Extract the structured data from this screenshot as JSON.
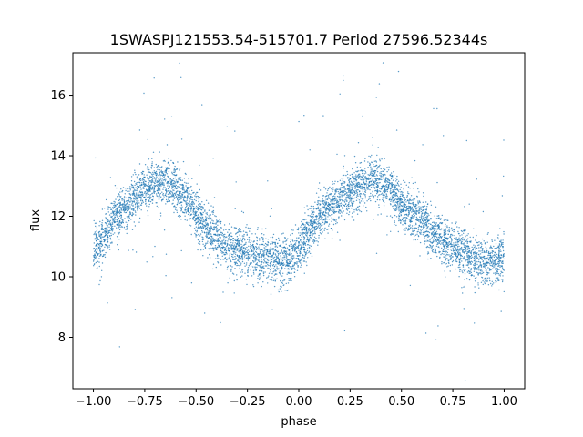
{
  "chart_data": {
    "type": "scatter",
    "title": "1SWASPJ121553.54-515701.7 Period 27596.52344s",
    "xlabel": "phase",
    "ylabel": "flux",
    "xlim": [
      -1.1,
      1.1
    ],
    "ylim": [
      6.3,
      17.4
    ],
    "x_ticks": [
      -1.0,
      -0.75,
      -0.5,
      -0.25,
      0.0,
      0.25,
      0.5,
      0.75,
      1.0
    ],
    "x_tick_labels": [
      "−1.00",
      "−0.75",
      "−0.50",
      "−0.25",
      "0.00",
      "0.25",
      "0.50",
      "0.75",
      "1.00"
    ],
    "y_ticks": [
      8,
      10,
      12,
      14,
      16
    ],
    "y_tick_labels": [
      "8",
      "10",
      "12",
      "14",
      "16"
    ],
    "grid": false,
    "legend": "none",
    "marker_color": "#1f77b4",
    "series": [
      {
        "x": [
          -1.0,
          -0.9,
          -0.8,
          -0.75,
          -0.7,
          -0.65,
          -0.6,
          -0.55,
          -0.5,
          -0.45,
          -0.4,
          -0.35,
          -0.3,
          -0.25,
          -0.2,
          -0.15,
          -0.1,
          -0.05,
          0.0,
          0.05,
          0.1,
          0.15,
          0.2,
          0.25,
          0.3,
          0.35,
          0.4,
          0.45,
          0.5,
          0.55,
          0.6,
          0.65,
          0.7,
          0.75,
          0.8,
          0.85,
          0.9,
          0.95,
          1.0
        ],
        "y": [
          10.8,
          11.9,
          12.6,
          12.9,
          13.1,
          13.2,
          13.0,
          12.6,
          12.1,
          11.6,
          11.3,
          11.0,
          10.9,
          10.8,
          10.7,
          10.6,
          10.5,
          10.6,
          10.9,
          11.5,
          12.0,
          12.3,
          12.6,
          12.8,
          13.0,
          13.2,
          13.1,
          12.8,
          12.4,
          12.1,
          11.8,
          11.5,
          11.2,
          11.0,
          10.8,
          10.6,
          10.5,
          10.5,
          10.7
        ]
      }
    ]
  }
}
